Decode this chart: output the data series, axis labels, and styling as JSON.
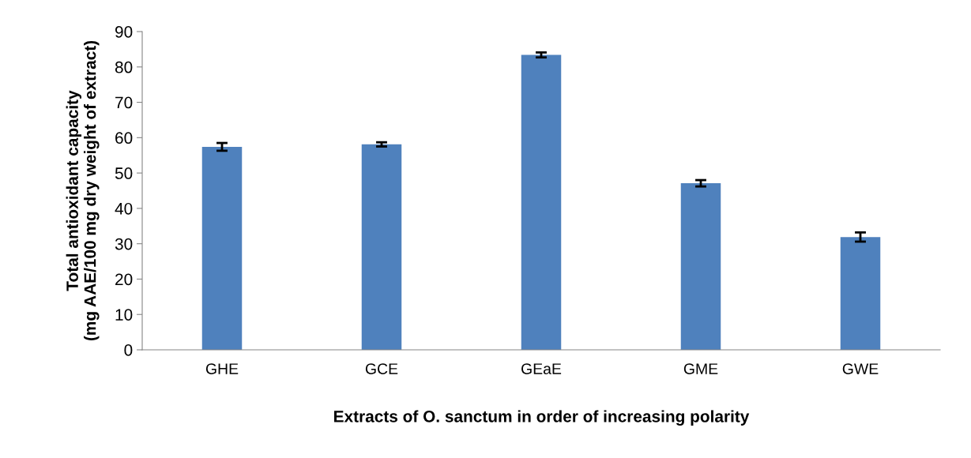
{
  "chart_data": {
    "type": "bar",
    "xlabel": "Extracts of O. sanctum in order of increasing polarity",
    "ylabel": "Total antioxidant capacity\n(mg AAE/100 mg dry weight of extract)",
    "categories": [
      "GHE",
      "GCE",
      "GEaE",
      "GME",
      "GWE"
    ],
    "values": [
      57.4,
      58.1,
      83.4,
      47.1,
      31.9
    ],
    "errors": [
      1.1,
      0.6,
      0.7,
      0.9,
      1.3
    ],
    "color": "#4f81bd",
    "ylim": [
      0,
      90
    ],
    "yticks": [
      0,
      10,
      20,
      30,
      40,
      50,
      60,
      70,
      80,
      90
    ],
    "grid": false,
    "legend": false
  }
}
